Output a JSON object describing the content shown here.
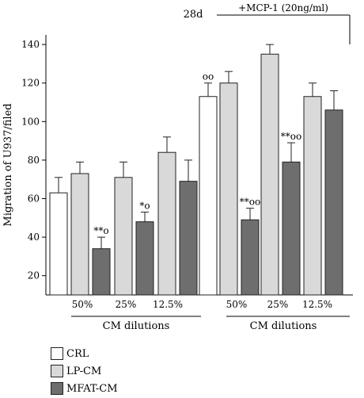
{
  "chart_data": {
    "type": "bar",
    "ylabel": "Migration of U937/filed",
    "ylim": [
      10,
      145
    ],
    "yticks": [
      20,
      40,
      60,
      80,
      100,
      120,
      140
    ],
    "time_label": "28d",
    "treatment_label": "+MCP-1 (20ng/ml)",
    "groups": [
      {
        "annotation": "",
        "dilution": "",
        "values": [
          63,
          null,
          null
        ],
        "errors": [
          8,
          null,
          null
        ],
        "marks": [
          "",
          "",
          ""
        ]
      },
      {
        "annotation": "",
        "dilution": "50%",
        "values": [
          null,
          73,
          34
        ],
        "errors": [
          null,
          6,
          6
        ],
        "marks": [
          "",
          "",
          "**o"
        ]
      },
      {
        "annotation": "",
        "dilution": "25%",
        "values": [
          null,
          71,
          48
        ],
        "errors": [
          null,
          8,
          5
        ],
        "marks": [
          "",
          "",
          "*o"
        ]
      },
      {
        "annotation": "",
        "dilution": "12.5%",
        "values": [
          null,
          84,
          69
        ],
        "errors": [
          null,
          8,
          11
        ],
        "marks": [
          "",
          "",
          ""
        ]
      },
      {
        "annotation": "+MCP-1",
        "dilution": "",
        "values": [
          113,
          null,
          null
        ],
        "errors": [
          7,
          null,
          null
        ],
        "marks": [
          "oo",
          "",
          ""
        ]
      },
      {
        "annotation": "+MCP-1",
        "dilution": "50%",
        "values": [
          null,
          120,
          49
        ],
        "errors": [
          null,
          6,
          6
        ],
        "marks": [
          "",
          "",
          "**oo"
        ]
      },
      {
        "annotation": "+MCP-1",
        "dilution": "25%",
        "values": [
          null,
          135,
          79
        ],
        "errors": [
          null,
          5,
          10
        ],
        "marks": [
          "",
          "",
          "**oo"
        ]
      },
      {
        "annotation": "+MCP-1",
        "dilution": "12.5%",
        "values": [
          null,
          113,
          106
        ],
        "errors": [
          null,
          7,
          10
        ],
        "marks": [
          "",
          "",
          ""
        ]
      }
    ],
    "series": [
      {
        "name": "CRL",
        "color": "#ffffff"
      },
      {
        "name": "LP-CM",
        "color": "#d9d9d9"
      },
      {
        "name": "MFAT-CM",
        "color": "#6e6e6e"
      }
    ],
    "dilution_group_label": "CM dilutions",
    "grid": false,
    "legend_position": "bottom-left"
  }
}
